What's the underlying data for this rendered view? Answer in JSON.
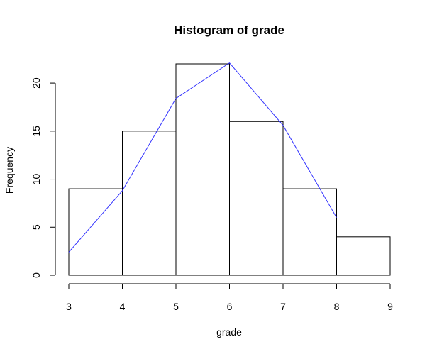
{
  "chart_data": {
    "type": "bar",
    "title": "Histogram of grade",
    "xlabel": "grade",
    "ylabel": "Frequency",
    "bins": [
      {
        "from": 3,
        "to": 4,
        "count": 9
      },
      {
        "from": 4,
        "to": 5,
        "count": 15
      },
      {
        "from": 5,
        "to": 6,
        "count": 22
      },
      {
        "from": 6,
        "to": 7,
        "count": 16
      },
      {
        "from": 7,
        "to": 8,
        "count": 9
      },
      {
        "from": 8,
        "to": 9,
        "count": 4
      }
    ],
    "series": [
      {
        "type": "line",
        "color": "#3333ff",
        "x": [
          3,
          4,
          5,
          6,
          7,
          8
        ],
        "y": [
          2.4,
          8.8,
          18.4,
          22.1,
          15.6,
          6.0
        ]
      }
    ],
    "xlim": [
      3,
      9
    ],
    "ylim": [
      0,
      22
    ],
    "xticks": [
      "3",
      "4",
      "5",
      "6",
      "7",
      "8",
      "9"
    ],
    "yticks": [
      "0",
      "5",
      "10",
      "15",
      "20"
    ],
    "grid": false,
    "colors": {
      "bar_fill": "#ffffff",
      "bar_stroke": "#000000",
      "line": "#3333ff"
    }
  }
}
